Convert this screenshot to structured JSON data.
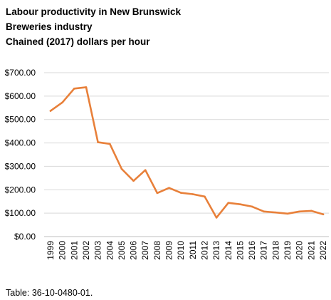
{
  "chart_data": {
    "type": "line",
    "title_lines": [
      "Labour productivity in New Brunswick",
      "Breweries industry",
      "Chained (2017) dollars per hour"
    ],
    "x": [
      "1999",
      "2000",
      "2001",
      "2002",
      "2003",
      "2004",
      "2005",
      "2006",
      "2007",
      "2008",
      "2009",
      "2010",
      "2011",
      "2012",
      "2013",
      "2014",
      "2015",
      "2016",
      "2017",
      "2018",
      "2019",
      "2020",
      "2021",
      "2022"
    ],
    "series": [
      {
        "values": [
          537,
          573,
          632,
          638,
          403,
          396,
          289,
          238,
          284,
          186,
          208,
          187,
          181,
          171,
          81,
          144,
          138,
          128,
          107,
          103,
          98,
          107,
          110,
          95
        ],
        "color": "#E8803A"
      }
    ],
    "y_ticks": [
      "$0.00",
      "$100.00",
      "$200.00",
      "$300.00",
      "$400.00",
      "$500.00",
      "$600.00",
      "$700.00"
    ],
    "ylim": [
      0,
      700
    ],
    "grid": true,
    "legend": "none"
  },
  "footer": "Table: 36-10-0480-01."
}
